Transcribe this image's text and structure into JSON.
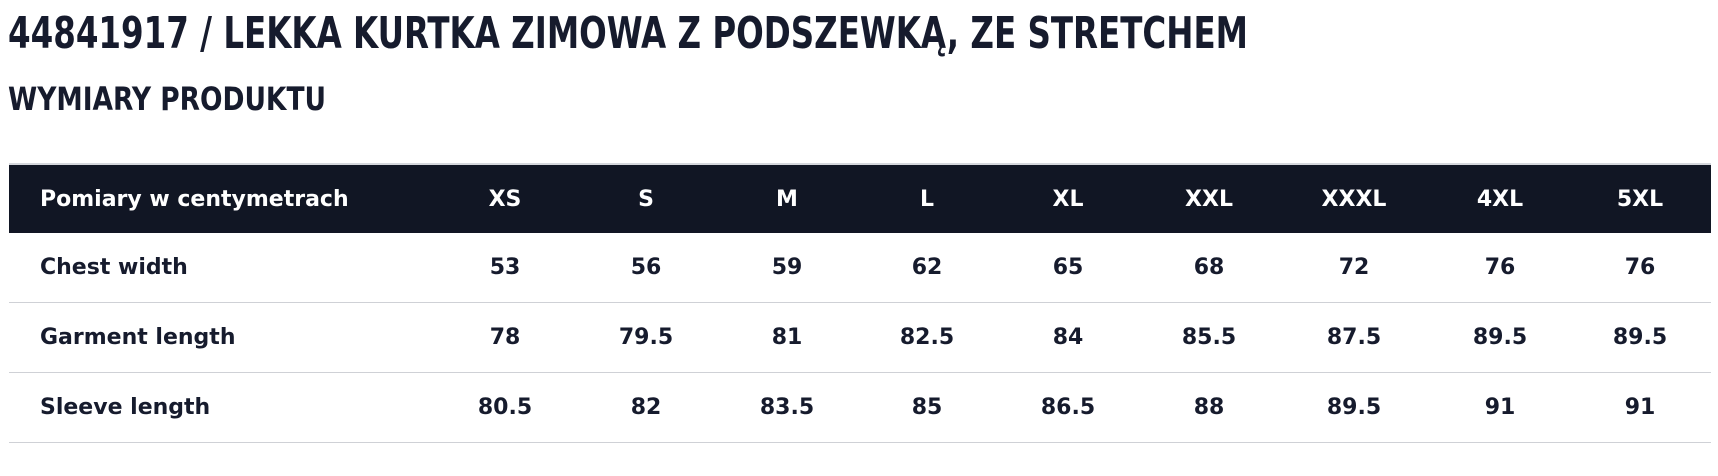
{
  "header": {
    "title": "44841917 / LEKKA KURTKA ZIMOWA Z PODSZEWKĄ, ZE STRETCHEM",
    "subtitle": "WYMIARY PRODUKTU"
  },
  "table": {
    "columns": [
      "Pomiary w centymetrach",
      "XS",
      "S",
      "M",
      "L",
      "XL",
      "XXL",
      "XXXL",
      "4XL",
      "5XL"
    ],
    "rows": [
      [
        "Chest width",
        53,
        56,
        59,
        62,
        65,
        68,
        72,
        76,
        76
      ],
      [
        "Garment length",
        78,
        79.5,
        81,
        82.5,
        84,
        85.5,
        87.5,
        89.5,
        89.5
      ],
      [
        "Sleeve length",
        80.5,
        82,
        83.5,
        85,
        86.5,
        88,
        89.5,
        91,
        91
      ]
    ]
  }
}
